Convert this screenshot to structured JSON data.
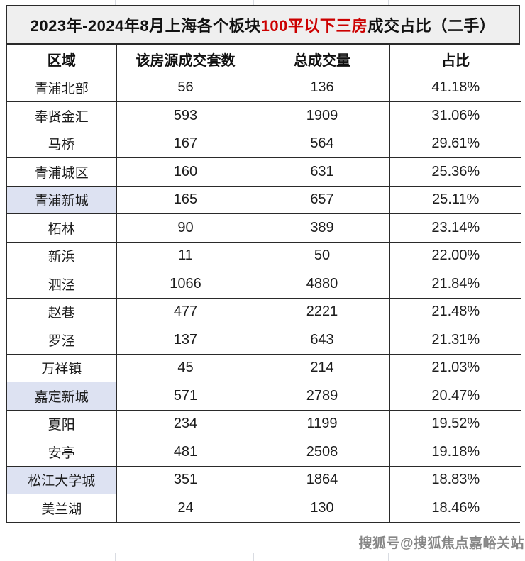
{
  "title": {
    "prefix": "2023年-2024年8月上海各个板块",
    "highlight": "100平以下三房",
    "suffix": "成交占比（二手）"
  },
  "watermark": "搜狐号@搜狐焦点嘉峪关站",
  "colors": {
    "title_bg": "#efefef",
    "highlight_bg": "#dde2f2",
    "accent_red": "#cc0000",
    "border": "#2a2a2a"
  },
  "chart_data": {
    "type": "table",
    "title": "2023年-2024年8月上海各个板块100平以下三房成交占比（二手）",
    "columns": [
      "区域",
      "该房源成交套数",
      "总成交量",
      "占比"
    ],
    "rows": [
      {
        "region": "青浦北部",
        "units": "56",
        "total": "136",
        "share": "41.18%",
        "highlighted": false
      },
      {
        "region": "奉贤金汇",
        "units": "593",
        "total": "1909",
        "share": "31.06%",
        "highlighted": false
      },
      {
        "region": "马桥",
        "units": "167",
        "total": "564",
        "share": "29.61%",
        "highlighted": false
      },
      {
        "region": "青浦城区",
        "units": "160",
        "total": "631",
        "share": "25.36%",
        "highlighted": false
      },
      {
        "region": "青浦新城",
        "units": "165",
        "total": "657",
        "share": "25.11%",
        "highlighted": true
      },
      {
        "region": "柘林",
        "units": "90",
        "total": "389",
        "share": "23.14%",
        "highlighted": false
      },
      {
        "region": "新浜",
        "units": "11",
        "total": "50",
        "share": "22.00%",
        "highlighted": false
      },
      {
        "region": "泗泾",
        "units": "1066",
        "total": "4880",
        "share": "21.84%",
        "highlighted": false
      },
      {
        "region": "赵巷",
        "units": "477",
        "total": "2221",
        "share": "21.48%",
        "highlighted": false
      },
      {
        "region": "罗泾",
        "units": "137",
        "total": "643",
        "share": "21.31%",
        "highlighted": false
      },
      {
        "region": "万祥镇",
        "units": "45",
        "total": "214",
        "share": "21.03%",
        "highlighted": false
      },
      {
        "region": "嘉定新城",
        "units": "571",
        "total": "2789",
        "share": "20.47%",
        "highlighted": true
      },
      {
        "region": "夏阳",
        "units": "234",
        "total": "1199",
        "share": "19.52%",
        "highlighted": false
      },
      {
        "region": "安亭",
        "units": "481",
        "total": "2508",
        "share": "19.18%",
        "highlighted": false
      },
      {
        "region": "松江大学城",
        "units": "351",
        "total": "1864",
        "share": "18.83%",
        "highlighted": true
      },
      {
        "region": "美兰湖",
        "units": "24",
        "total": "130",
        "share": "18.46%",
        "highlighted": false
      }
    ]
  }
}
